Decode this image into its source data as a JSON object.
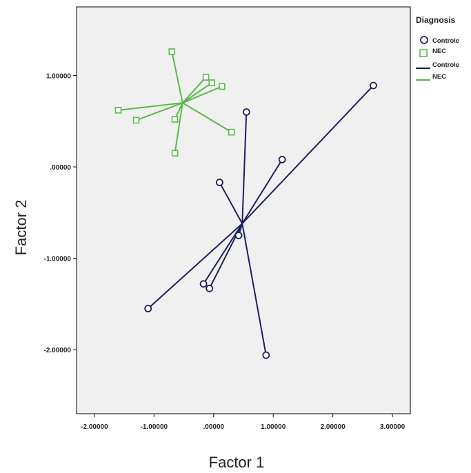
{
  "chart_data": {
    "type": "scatter",
    "title": "",
    "xlabel": "Factor 1",
    "ylabel": "Factor 2",
    "xlim": [
      -2.3,
      3.3
    ],
    "ylim": [
      -2.7,
      1.75
    ],
    "xticks": [
      -2,
      -1,
      0,
      1,
      2,
      3
    ],
    "yticks": [
      1,
      0,
      -1,
      -2
    ],
    "xtick_labels": [
      "-2.00000",
      "-1.00000",
      ".00000",
      "1.00000",
      "2.00000",
      "3.00000"
    ],
    "ytick_labels": [
      "1.00000",
      ".00000",
      "-1.00000",
      "-2.00000"
    ],
    "grid": false,
    "background": "#f0f0f0",
    "legend": {
      "title": "Diagnosis",
      "position": "right",
      "markers": [
        {
          "label": "Controle",
          "shape": "circle",
          "color": "#1c1f5a"
        },
        {
          "label": "NEC",
          "shape": "square",
          "color": "#58b947"
        }
      ],
      "lines": [
        {
          "label": "Controle",
          "color": "#1c1f5a"
        },
        {
          "label": "NEC",
          "color": "#58b947"
        }
      ]
    },
    "series": [
      {
        "name": "Controle",
        "marker": "circle",
        "color": "#1c1f5a",
        "centroid": [
          0.48,
          -0.62
        ],
        "points": [
          [
            2.68,
            0.89
          ],
          [
            0.55,
            0.6
          ],
          [
            1.15,
            0.08
          ],
          [
            0.1,
            -0.17
          ],
          [
            0.42,
            -0.75
          ],
          [
            -0.17,
            -1.28
          ],
          [
            -0.07,
            -1.33
          ],
          [
            -1.1,
            -1.55
          ],
          [
            0.88,
            -2.06
          ]
        ]
      },
      {
        "name": "NEC",
        "marker": "square",
        "color": "#58b947",
        "centroid": [
          -0.52,
          0.7
        ],
        "points": [
          [
            -0.7,
            1.26
          ],
          [
            -0.13,
            0.98
          ],
          [
            -0.03,
            0.92
          ],
          [
            0.14,
            0.88
          ],
          [
            -1.6,
            0.62
          ],
          [
            -1.3,
            0.51
          ],
          [
            -0.65,
            0.52
          ],
          [
            0.3,
            0.38
          ],
          [
            -0.65,
            0.15
          ]
        ]
      }
    ]
  }
}
